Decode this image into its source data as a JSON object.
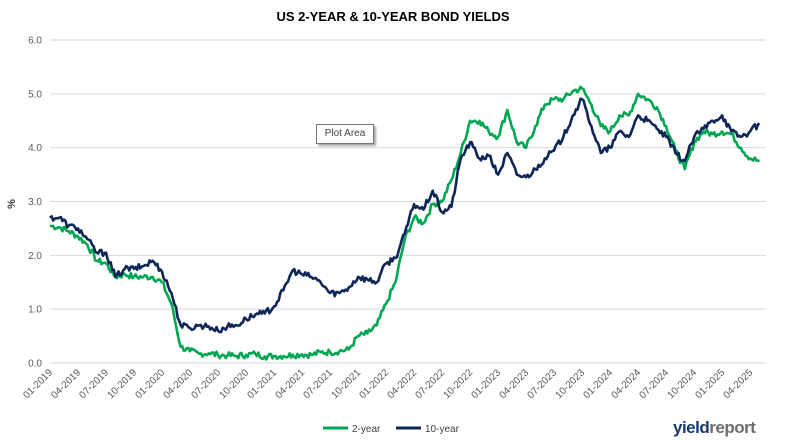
{
  "chart_data": {
    "type": "line",
    "title": "US 2-YEAR & 10-YEAR BOND YIELDS",
    "ylabel": "%",
    "xlabel": "",
    "ylim": [
      0,
      6
    ],
    "yticks": [
      "0.0",
      "1.0",
      "2.0",
      "3.0",
      "4.0",
      "5.0",
      "6.0"
    ],
    "xticks": [
      "01-2019",
      "04-2019",
      "07-2019",
      "10-2019",
      "01-2020",
      "04-2020",
      "07-2020",
      "10-2020",
      "01-2021",
      "04-2021",
      "07-2021",
      "10-2021",
      "01-2022",
      "04-2022",
      "07-2022",
      "10-2022",
      "01-2023",
      "04-2023",
      "07-2023",
      "10-2023",
      "01-2024",
      "04-2024",
      "07-2024",
      "10-2024",
      "01-2025",
      "04-2025"
    ],
    "grid": "horizontal",
    "legend_position": "bottom",
    "x": [
      "2019-01",
      "2019-02",
      "2019-03",
      "2019-04",
      "2019-05",
      "2019-06",
      "2019-07",
      "2019-08",
      "2019-09",
      "2019-10",
      "2019-11",
      "2019-12",
      "2020-01",
      "2020-02",
      "2020-03",
      "2020-04",
      "2020-05",
      "2020-06",
      "2020-07",
      "2020-08",
      "2020-09",
      "2020-10",
      "2020-11",
      "2020-12",
      "2021-01",
      "2021-02",
      "2021-03",
      "2021-04",
      "2021-05",
      "2021-06",
      "2021-07",
      "2021-08",
      "2021-09",
      "2021-10",
      "2021-11",
      "2021-12",
      "2022-01",
      "2022-02",
      "2022-03",
      "2022-04",
      "2022-05",
      "2022-06",
      "2022-07",
      "2022-08",
      "2022-09",
      "2022-10",
      "2022-11",
      "2022-12",
      "2023-01",
      "2023-02",
      "2023-03",
      "2023-04",
      "2023-05",
      "2023-06",
      "2023-07",
      "2023-08",
      "2023-09",
      "2023-10",
      "2023-11",
      "2023-12",
      "2024-01",
      "2024-02",
      "2024-03",
      "2024-04",
      "2024-05",
      "2024-06",
      "2024-07",
      "2024-08",
      "2024-09",
      "2024-10",
      "2024-11",
      "2024-12",
      "2025-01",
      "2025-02",
      "2025-03",
      "2025-04",
      "2025-05"
    ],
    "series": [
      {
        "name": "2-year",
        "color": "#00a651",
        "values": [
          2.55,
          2.52,
          2.45,
          2.35,
          2.2,
          1.9,
          1.85,
          1.6,
          1.65,
          1.6,
          1.6,
          1.6,
          1.5,
          1.1,
          0.3,
          0.22,
          0.17,
          0.18,
          0.15,
          0.14,
          0.13,
          0.15,
          0.17,
          0.12,
          0.13,
          0.13,
          0.15,
          0.16,
          0.15,
          0.2,
          0.2,
          0.22,
          0.25,
          0.5,
          0.55,
          0.7,
          1.1,
          1.5,
          2.3,
          2.7,
          2.6,
          2.95,
          3.0,
          3.4,
          3.9,
          4.5,
          4.5,
          4.3,
          4.2,
          4.7,
          4.1,
          4.0,
          4.4,
          4.8,
          4.9,
          4.9,
          5.05,
          5.1,
          4.8,
          4.4,
          4.3,
          4.6,
          4.6,
          5.0,
          4.9,
          4.75,
          4.4,
          3.95,
          3.6,
          4.1,
          4.3,
          4.25,
          4.3,
          4.25,
          4.0,
          3.8,
          3.75
        ]
      },
      {
        "name": "10-year",
        "color": "#0e2758",
        "values": [
          2.7,
          2.7,
          2.55,
          2.5,
          2.3,
          2.05,
          2.05,
          1.6,
          1.75,
          1.75,
          1.8,
          1.9,
          1.7,
          1.3,
          0.7,
          0.65,
          0.7,
          0.68,
          0.6,
          0.68,
          0.7,
          0.82,
          0.9,
          0.92,
          1.05,
          1.35,
          1.72,
          1.65,
          1.6,
          1.5,
          1.3,
          1.3,
          1.4,
          1.6,
          1.55,
          1.5,
          1.85,
          1.95,
          2.4,
          2.95,
          2.85,
          3.2,
          2.8,
          2.9,
          3.8,
          4.1,
          3.8,
          3.85,
          3.5,
          3.9,
          3.5,
          3.45,
          3.6,
          3.8,
          3.95,
          4.2,
          4.6,
          4.9,
          4.4,
          3.9,
          4.0,
          4.3,
          4.2,
          4.6,
          4.5,
          4.35,
          4.2,
          3.9,
          3.75,
          4.2,
          4.35,
          4.5,
          4.6,
          4.3,
          4.2,
          4.3,
          4.45
        ]
      }
    ]
  },
  "tooltip": {
    "plot_area": "Plot Area"
  },
  "brand": {
    "part1": "yield",
    "part2": "report"
  }
}
